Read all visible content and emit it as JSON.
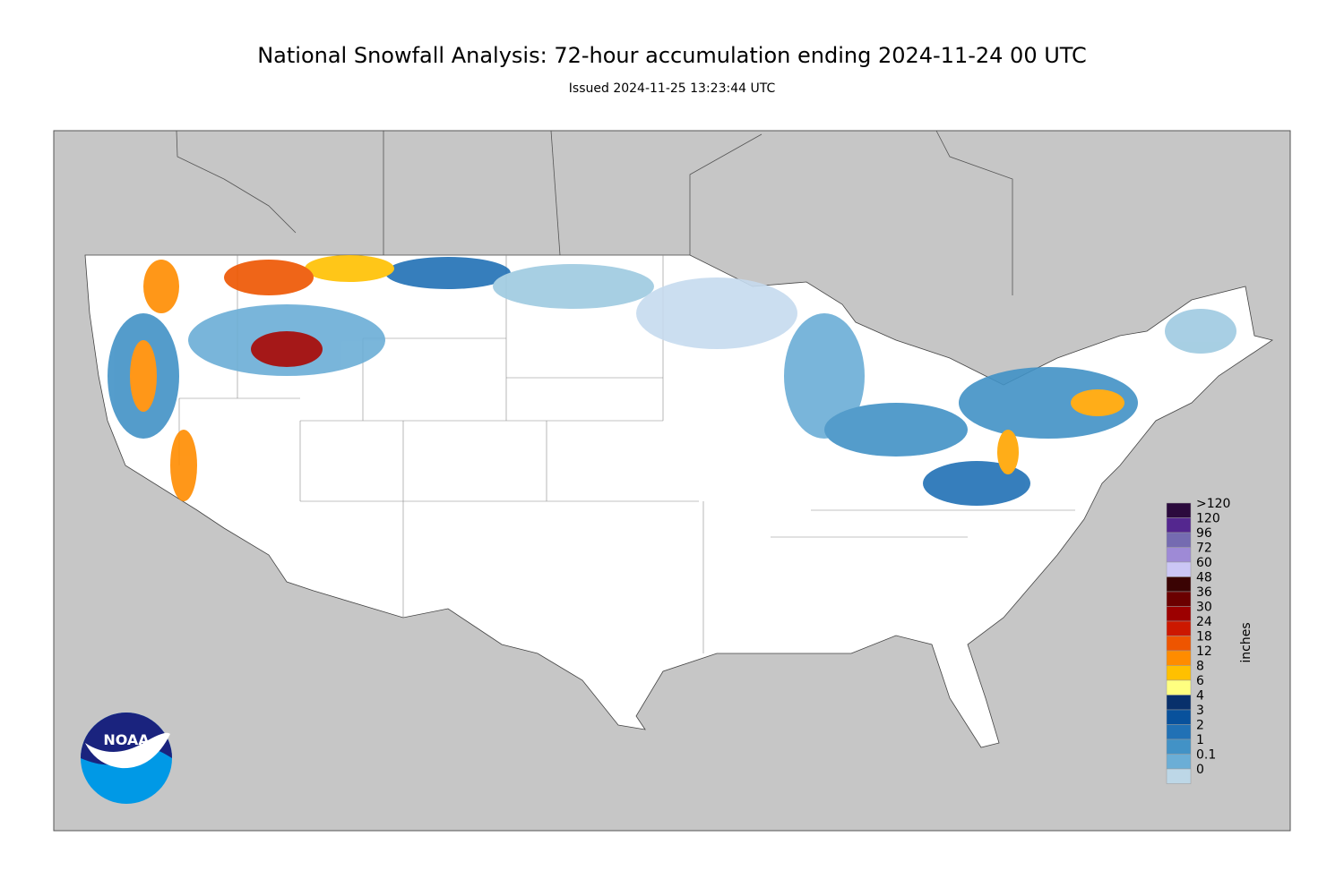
{
  "header": {
    "title": "National Snowfall Analysis: 72-hour accumulation ending 2024-11-24 00 UTC",
    "subtitle": "Issued 2024-11-25 13:23:44 UTC"
  },
  "legend": {
    "title": "inches",
    "items": [
      {
        "label": ">120",
        "color": "#2b0a3d"
      },
      {
        "label": "120",
        "color": "#54278f"
      },
      {
        "label": "96",
        "color": "#756bb1"
      },
      {
        "label": "72",
        "color": "#9e8ad6"
      },
      {
        "label": "60",
        "color": "#cbc6f5"
      },
      {
        "label": "48",
        "color": "#3a0303"
      },
      {
        "label": "36",
        "color": "#6b0000"
      },
      {
        "label": "30",
        "color": "#9c0000"
      },
      {
        "label": "24",
        "color": "#cc1800"
      },
      {
        "label": "18",
        "color": "#ee5500"
      },
      {
        "label": "12",
        "color": "#ff8c00"
      },
      {
        "label": "8",
        "color": "#ffc000"
      },
      {
        "label": "6",
        "color": "#ffff80"
      },
      {
        "label": "4",
        "color": "#08306b"
      },
      {
        "label": "3",
        "color": "#08519c"
      },
      {
        "label": "2",
        "color": "#2171b5"
      },
      {
        "label": "1",
        "color": "#4292c6"
      },
      {
        "label": "0.1",
        "color": "#6baed6"
      },
      {
        "label": "0",
        "color": "#bdd7e7"
      }
    ]
  },
  "logo": {
    "text": "NOAA"
  }
}
